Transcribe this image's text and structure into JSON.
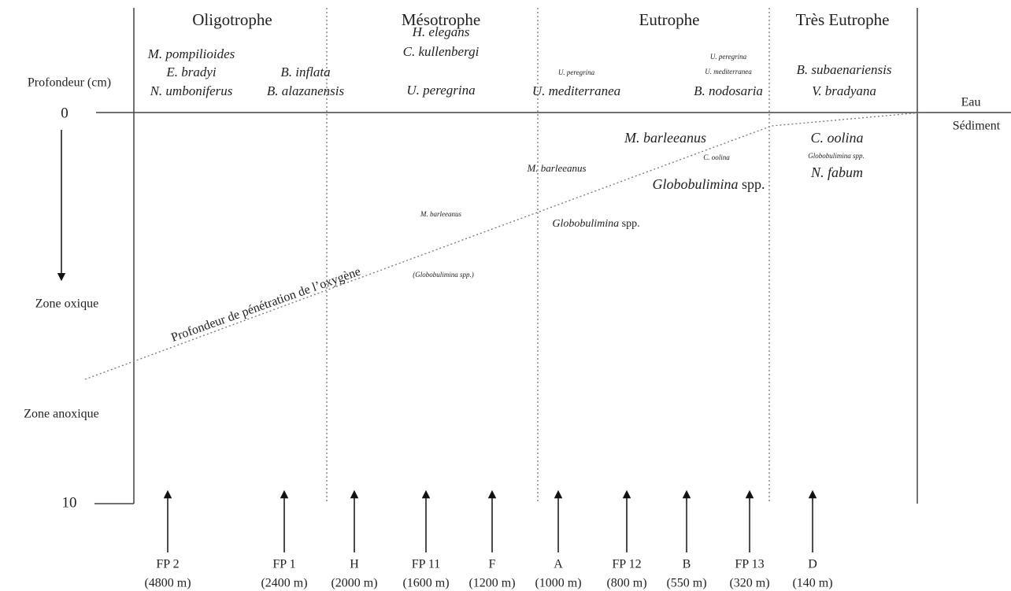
{
  "zones": [
    "Oligotrophe",
    "Mésotrophe",
    "Eutrophe",
    "Très Eutrophe"
  ],
  "axis": {
    "title": "Profondeur (cm)",
    "top": "0",
    "bottom": "10",
    "oxic": "Zone oxique",
    "anoxic": "Zone anoxique"
  },
  "interface": {
    "above": "Eau",
    "below": "Sédiment"
  },
  "oxygen_line": "Profondeur de pénétration de l’oxygène",
  "surface_species": [
    [
      "M. pompilioides",
      "E. bradyi",
      "N. umboniferus"
    ],
    [
      "B. inflata",
      "B. alazanensis"
    ],
    [
      "H. elegans",
      "C. kullenbergi",
      "U. peregrina"
    ],
    [
      "U. peregrina",
      "U. mediterranea"
    ],
    [
      "U. peregrina",
      "U. mediterranea",
      "B. nodosaria"
    ],
    [
      "B. subaenariensis",
      "V. bradyana"
    ]
  ],
  "infaunal_species": [
    {
      "name": "M. barleeanus"
    },
    {
      "name": "C. oolina"
    },
    {
      "name": "Globobulimina",
      "suffix": "spp."
    },
    {
      "name": "M. barleeanus"
    },
    {
      "name": "Globobulimina",
      "suffix": "spp."
    },
    {
      "name": "M. barleeanus"
    },
    {
      "name": "(Globobulimina spp.)"
    },
    {
      "name": "C. oolina"
    },
    {
      "name": "Globobulimina spp."
    },
    {
      "name": "N. fabum"
    }
  ],
  "stations": [
    {
      "name": "FP 2",
      "depth": "(4800 m)"
    },
    {
      "name": "FP 1",
      "depth": "(2400 m)"
    },
    {
      "name": "H",
      "depth": "(2000 m)"
    },
    {
      "name": "FP 11",
      "depth": "(1600 m)"
    },
    {
      "name": "F",
      "depth": "(1200 m)"
    },
    {
      "name": "A",
      "depth": "(1000 m)"
    },
    {
      "name": "FP 12",
      "depth": "(800 m)"
    },
    {
      "name": "B",
      "depth": "(550 m)"
    },
    {
      "name": "FP 13",
      "depth": "(320 m)"
    },
    {
      "name": "D",
      "depth": "(140 m)"
    }
  ]
}
